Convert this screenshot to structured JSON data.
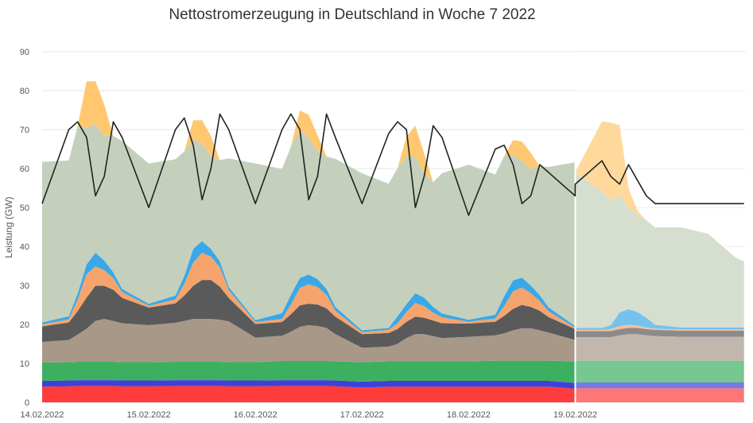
{
  "chart_data": {
    "type": "area",
    "title": "Nettostromerzeugung in Deutschland in Woche 7 2022",
    "xlabel": "",
    "ylabel": "Leistung (GW)",
    "ylim": [
      0,
      90
    ],
    "yticks": [
      0,
      10,
      20,
      30,
      40,
      50,
      60,
      70,
      80,
      90
    ],
    "xlim": [
      0,
      6.6
    ],
    "xtick_labels": [
      "14.02.2022",
      "15.02.2022",
      "16.02.2022",
      "17.02.2022",
      "18.02.2022",
      "19.02.2022"
    ],
    "xtick_positions": [
      0,
      1,
      2,
      3,
      4,
      5
    ],
    "x_unit": "days since 14.02.2022 00:00",
    "forecast_start": 5.0,
    "grid": true,
    "x": [
      0,
      0.25,
      0.333,
      0.417,
      0.5,
      0.583,
      0.667,
      0.75,
      1.0,
      1.25,
      1.333,
      1.417,
      1.5,
      1.583,
      1.667,
      1.75,
      2.0,
      2.25,
      2.333,
      2.417,
      2.5,
      2.583,
      2.667,
      2.75,
      3.0,
      3.25,
      3.333,
      3.417,
      3.5,
      3.583,
      3.667,
      3.75,
      4.0,
      4.25,
      4.333,
      4.417,
      4.5,
      4.583,
      4.667,
      4.75,
      4.999,
      5.0,
      5.25,
      5.333,
      5.417,
      5.5,
      5.583,
      5.667,
      5.75,
      6.0,
      6.25,
      6.333,
      6.417,
      6.5,
      6.583
    ],
    "series": [
      {
        "name": "",
        "color": "#ff3c3c",
        "values": [
          4,
          4.1,
          4.2,
          4.2,
          4.2,
          4.2,
          4.2,
          4.1,
          4.1,
          4.2,
          4.2,
          4.2,
          4.2,
          4.2,
          4.2,
          4.1,
          4.1,
          4.2,
          4.2,
          4.2,
          4.2,
          4.2,
          4.2,
          4.1,
          3.8,
          4.0,
          4.0,
          4.0,
          4.0,
          4.0,
          4.0,
          4.0,
          4.0,
          4.0,
          4.0,
          4.0,
          4.0,
          4.0,
          4.0,
          4.0,
          3.5,
          3.6,
          3.6,
          3.6,
          3.6,
          3.6,
          3.6,
          3.6,
          3.6,
          3.6,
          3.6,
          3.6,
          3.6,
          3.6,
          3.6
        ]
      },
      {
        "name": "",
        "color": "#4040d8",
        "values": [
          1.5,
          1.5,
          1.5,
          1.5,
          1.5,
          1.5,
          1.5,
          1.5,
          1.5,
          1.5,
          1.5,
          1.5,
          1.5,
          1.5,
          1.5,
          1.5,
          1.5,
          1.5,
          1.5,
          1.5,
          1.5,
          1.5,
          1.5,
          1.5,
          1.5,
          1.5,
          1.5,
          1.5,
          1.5,
          1.5,
          1.5,
          1.5,
          1.5,
          1.5,
          1.5,
          1.5,
          1.5,
          1.5,
          1.5,
          1.5,
          1.5,
          1.5,
          1.5,
          1.5,
          1.5,
          1.5,
          1.5,
          1.5,
          1.5,
          1.5,
          1.5,
          1.5,
          1.5,
          1.5,
          1.5
        ]
      },
      {
        "name": "",
        "color": "#3cb060",
        "values": [
          4.7,
          4.7,
          4.7,
          4.7,
          4.7,
          4.7,
          4.7,
          4.7,
          4.7,
          4.7,
          4.7,
          4.7,
          4.7,
          4.7,
          4.7,
          4.7,
          4.7,
          4.9,
          4.9,
          4.9,
          4.9,
          4.9,
          4.9,
          4.9,
          5.0,
          5.0,
          5.0,
          5.0,
          5.0,
          5.0,
          5.0,
          5.0,
          5.0,
          5.2,
          5.2,
          5.2,
          5.2,
          5.2,
          5.2,
          5.2,
          5.5,
          5.6,
          5.6,
          5.6,
          5.6,
          5.6,
          5.6,
          5.6,
          5.6,
          5.6,
          5.6,
          5.6,
          5.6,
          5.6,
          5.6
        ]
      },
      {
        "name": "",
        "color": "#a89888",
        "values": [
          5.3,
          5.7,
          7,
          8.5,
          10.5,
          11,
          10.5,
          10,
          9.5,
          10,
          10.5,
          11,
          11,
          11,
          10.8,
          10.5,
          6.3,
          6.5,
          7.5,
          8.8,
          9.2,
          9.0,
          8.5,
          7.0,
          3.7,
          3.8,
          4.5,
          6.0,
          7.0,
          7.0,
          6.5,
          6.0,
          6.3,
          6.5,
          7.0,
          7.8,
          8.3,
          8.3,
          7.8,
          7.2,
          5.5,
          6.0,
          6.0,
          6.0,
          6.5,
          6.8,
          6.8,
          6.5,
          6.3,
          6.1,
          6.1,
          6.1,
          6.1,
          6.1,
          6.1
        ]
      },
      {
        "name": "",
        "color": "#5a5a5a",
        "values": [
          4,
          4.5,
          6,
          8,
          9,
          8.5,
          8,
          6.5,
          4.5,
          5,
          6.5,
          8.5,
          10,
          10,
          8.5,
          6.0,
          3.5,
          3.5,
          4.5,
          5.5,
          5.5,
          5.5,
          5.0,
          4.5,
          3.5,
          3.5,
          3.8,
          4.2,
          4.5,
          4.2,
          4.0,
          3.8,
          3.4,
          3.5,
          4.5,
          5.5,
          6.0,
          5.5,
          5.0,
          4.0,
          2.8,
          1.6,
          1.6,
          1.6,
          1.6,
          1.6,
          1.6,
          1.6,
          1.6,
          1.6,
          1.6,
          1.6,
          1.6,
          1.6,
          1.6
        ]
      },
      {
        "name": "",
        "color": "#f4a46c",
        "values": [
          0.5,
          0.8,
          3,
          6,
          5,
          4,
          3,
          1.5,
          0.5,
          1,
          3,
          6,
          7,
          6,
          5,
          2,
          0.5,
          0.8,
          2.5,
          4.5,
          5,
          4.5,
          3.5,
          1.5,
          0.5,
          0.8,
          1.5,
          2.5,
          3.5,
          3.0,
          2.0,
          1.5,
          0.5,
          0.8,
          2.5,
          4.5,
          4.5,
          3.5,
          2.5,
          1.5,
          0.3,
          0.3,
          0.3,
          0.5,
          0.8,
          0.8,
          0.6,
          0.4,
          0.3,
          0.3,
          0.3,
          0.3,
          0.3,
          0.3,
          0.3
        ]
      },
      {
        "name": "",
        "color": "#3aa8e8",
        "values": [
          0.5,
          0.8,
          1.5,
          2.5,
          3.5,
          2.5,
          1.5,
          0.8,
          0.5,
          1,
          2,
          3.5,
          3,
          2,
          1.5,
          0.8,
          0.5,
          1.5,
          2.5,
          2.5,
          2.5,
          2.0,
          1.5,
          1.0,
          0.5,
          0.5,
          1.8,
          2.0,
          2.5,
          2.2,
          1.5,
          1.0,
          0.5,
          1.0,
          2.5,
          2.8,
          2.5,
          2.0,
          1.5,
          1.0,
          0.5,
          0.5,
          0.5,
          1.0,
          3.5,
          4.0,
          3.5,
          2.5,
          1.0,
          0.5,
          0.5,
          0.5,
          0.5,
          0.5,
          0.5
        ]
      },
      {
        "name": "",
        "color": "#c4d0bc",
        "values": [
          41.2,
          40,
          43,
          35,
          33,
          32,
          35,
          38,
          36,
          35,
          32,
          28,
          25,
          24,
          26,
          33,
          40.2,
          37,
          38,
          38,
          35,
          33,
          34,
          38,
          40.3,
          37,
          38,
          38,
          35,
          32,
          32,
          36,
          39.8,
          36,
          36,
          32,
          30,
          30,
          33,
          36,
          42,
          40,
          35,
          32,
          30,
          26,
          25,
          25,
          25,
          25.7,
          24,
          22,
          20,
          18,
          17
        ]
      },
      {
        "name": "",
        "color": "#ffc870",
        "values": [
          0,
          0,
          0,
          12,
          11,
          8,
          0,
          0,
          0,
          0,
          0,
          5,
          6,
          5,
          0,
          0,
          0,
          0,
          0,
          5,
          6,
          4,
          0,
          0,
          0,
          0,
          0,
          5,
          8,
          5,
          0,
          0,
          0,
          0,
          0,
          4,
          5,
          4,
          0,
          0,
          0,
          0,
          18,
          20,
          18,
          5,
          1,
          0,
          0,
          0,
          0,
          0,
          0,
          0,
          0
        ]
      }
    ],
    "load": {
      "name": "",
      "color": "#222222",
      "values": [
        51,
        70,
        72,
        68,
        53,
        58,
        72,
        68,
        50,
        70,
        73,
        66,
        52,
        60,
        74,
        70,
        51,
        70,
        74,
        70,
        52,
        58,
        74,
        68,
        51,
        69,
        72,
        70,
        50,
        58,
        71,
        68,
        48,
        65,
        66,
        61,
        51,
        53,
        61,
        59,
        53,
        56,
        62,
        58,
        56,
        61,
        57,
        53,
        51,
        51,
        51,
        51,
        51,
        51,
        51
      ]
    }
  }
}
